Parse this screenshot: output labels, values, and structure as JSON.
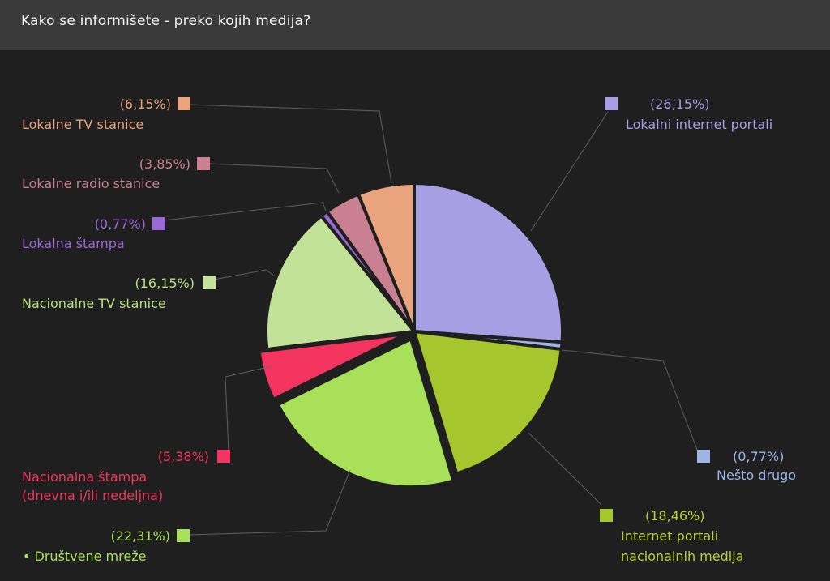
{
  "chart_data": {
    "type": "pie",
    "title": "Kako se informišete - preko kojih medija?",
    "slices": [
      {
        "label": "Lokalni internet portali",
        "pct_label": "(26,15%)",
        "value": 26.15,
        "color": "#a89ee3",
        "label_color": "#a89ee3"
      },
      {
        "label": "Nešto drugo",
        "pct_label": "(0,77%)",
        "value": 0.77,
        "color": "#9db4e6",
        "label_color": "#9db4e6"
      },
      {
        "label": "Internet portali nacionalnih medija",
        "pct_label": "(18,46%)",
        "value": 18.46,
        "color": "#a7c52c",
        "label_color": "#b6d137"
      },
      {
        "label": "• Društvene mreže",
        "pct_label": "(22,31%)",
        "value": 22.31,
        "color": "#a8e05a",
        "label_color": "#a8e05a"
      },
      {
        "label": "Nacionalna štampa (dnevna i/ili nedeljna)",
        "pct_label": "(5,38%)",
        "value": 5.38,
        "color": "#f2345e",
        "label_color": "#f2345e"
      },
      {
        "label": "Nacionalne TV stanice",
        "pct_label": "(16,15%)",
        "value": 16.15,
        "color": "#c2e297",
        "label_color": "#b7e07f"
      },
      {
        "label": "Lokalna štampa",
        "pct_label": "(0,77%)",
        "value": 0.77,
        "color": "#9a69d6",
        "label_color": "#9a69d6"
      },
      {
        "label": "Lokalne radio stanice",
        "pct_label": "(3,85%)",
        "value": 3.85,
        "color": "#c98192",
        "label_color": "#c98192"
      },
      {
        "label": "Lokalne TV stanice",
        "pct_label": "(6,15%)",
        "value": 6.15,
        "color": "#e9a47d",
        "label_color": "#e9a47d"
      }
    ]
  }
}
